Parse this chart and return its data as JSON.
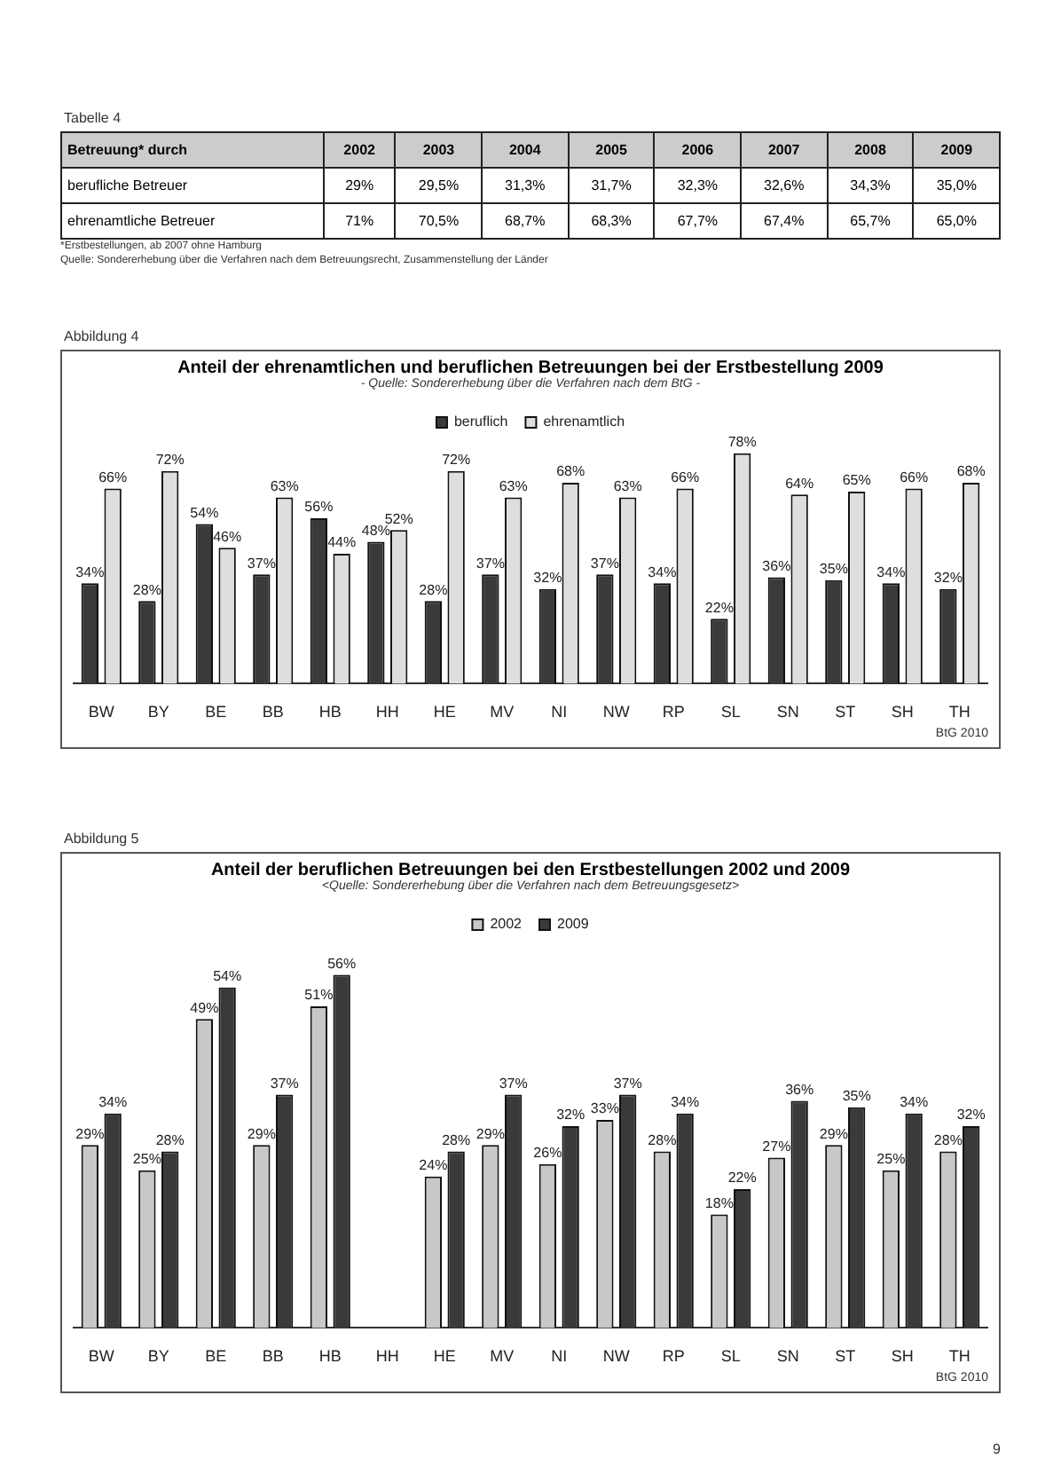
{
  "chart_data": [
    {
      "type": "heatmap",
      "ylabel": "Betreuung* durch",
      "categories": [
        "2002",
        "2003",
        "2004",
        "2005",
        "2006",
        "2007",
        "2008",
        "2009"
      ],
      "y_categories": [
        "berufliche Betreuer",
        "ehrenamtliche Betreuer"
      ],
      "cells": [
        [
          29,
          29.5,
          31.3,
          31.7,
          32.3,
          32.6,
          34.3,
          35.0
        ],
        [
          71,
          70.5,
          68.7,
          68.3,
          67.7,
          67.4,
          65.7,
          65.0
        ]
      ],
      "cell_labels": [
        [
          "29%",
          "29,5%",
          "31,3%",
          "31,7%",
          "32,3%",
          "32,6%",
          "34,3%",
          "35,0%"
        ],
        [
          "71%",
          "70,5%",
          "68,7%",
          "68,3%",
          "67,7%",
          "67,4%",
          "65,7%",
          "65,0%"
        ]
      ],
      "annotations": [
        "Tabelle 4",
        "*Erstbestellungen, ab 2007 ohne Hamburg",
        "Quelle: Sondererhebung über die Verfahren nach dem Betreuungsrecht, Zusammenstellung der Länder"
      ]
    },
    {
      "type": "bar",
      "title": "Anteil der ehrenamtlichen und beruflichen Betreuungen bei der Erstbestellung 2009",
      "subtitle": "- Quelle: Sondererhebung über die Verfahren nach dem BtG -",
      "categories": [
        "BW",
        "BY",
        "BE",
        "BB",
        "HB",
        "HH",
        "HE",
        "MV",
        "NI",
        "NW",
        "RP",
        "SL",
        "SN",
        "ST",
        "SH",
        "TH"
      ],
      "series": [
        {
          "name": "beruflich",
          "color": "#3a3a3a",
          "values": [
            34,
            28,
            54,
            37,
            56,
            48,
            28,
            37,
            32,
            37,
            34,
            22,
            36,
            35,
            34,
            32
          ],
          "value_labels": [
            "34%",
            "28%",
            "54%",
            "37%",
            "56%",
            "48%",
            "28%",
            "37%",
            "32%",
            "37%",
            "34%",
            "22%",
            "36%",
            "35%",
            "34%",
            "32%"
          ]
        },
        {
          "name": "ehrenamtlich",
          "color": "#dedede",
          "values": [
            66,
            72,
            46,
            63,
            44,
            52,
            72,
            63,
            68,
            63,
            66,
            78,
            64,
            65,
            66,
            68
          ],
          "value_labels": [
            "66%",
            "72%",
            "46%",
            "63%",
            "44%",
            "52%",
            "72%",
            "63%",
            "68%",
            "63%",
            "66%",
            "78%",
            "64%",
            "65%",
            "66%",
            "68%"
          ]
        }
      ],
      "legend": "top",
      "tick_labels": "x",
      "grid": false,
      "annotations": [
        "Abbildung 4",
        "BtG 2010"
      ]
    },
    {
      "type": "bar",
      "title": "Anteil der beruflichen Betreuungen bei den Erstbestellungen 2002 und 2009",
      "subtitle": "<Quelle: Sondererhebung über die Verfahren nach dem Betreuungsgesetz>",
      "categories": [
        "BW",
        "BY",
        "BE",
        "BB",
        "HB",
        "HH",
        "HE",
        "MV",
        "NI",
        "NW",
        "RP",
        "SL",
        "SN",
        "ST",
        "SH",
        "TH"
      ],
      "series": [
        {
          "name": "2002",
          "color": "#c8c8c8",
          "values": [
            29,
            25,
            49,
            29,
            51,
            null,
            24,
            29,
            26,
            33,
            28,
            18,
            27,
            29,
            25,
            28
          ],
          "value_labels": [
            "29%",
            "25%",
            "49%",
            "29%",
            "51%",
            null,
            "24%",
            "29%",
            "26%",
            "33%",
            "28%",
            "18%",
            "27%",
            "29%",
            "25%",
            "28%"
          ]
        },
        {
          "name": "2009",
          "color": "#3a3a3a",
          "values": [
            34,
            28,
            54,
            37,
            56,
            null,
            28,
            37,
            32,
            37,
            34,
            22,
            36,
            35,
            34,
            32
          ],
          "value_labels": [
            "34%",
            "28%",
            "54%",
            "37%",
            "56%",
            null,
            "28%",
            "37%",
            "32%",
            "37%",
            "34%",
            "22%",
            "36%",
            "35%",
            "34%",
            "32%"
          ]
        }
      ],
      "legend": "top",
      "tick_labels": "x",
      "grid": false,
      "annotations": [
        "Abbildung 5",
        "BtG 2010",
        "9"
      ]
    }
  ]
}
